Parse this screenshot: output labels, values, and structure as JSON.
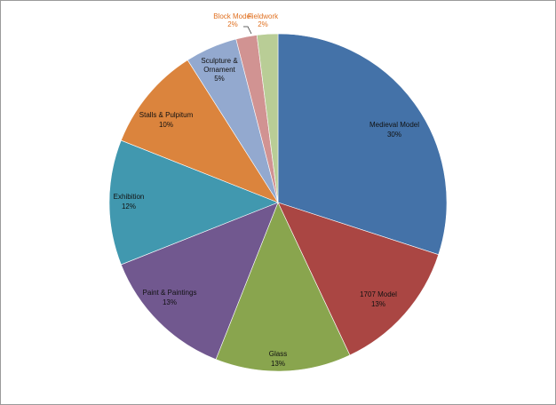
{
  "chart_data": {
    "type": "pie",
    "title": "",
    "slices": [
      {
        "label": "Medieval Model",
        "pct_label": "30%",
        "value": 30,
        "color": "#4472a8"
      },
      {
        "label": "1707 Model",
        "pct_label": "13%",
        "value": 13,
        "color": "#aa4643"
      },
      {
        "label": "Glass",
        "pct_label": "13%",
        "value": 13,
        "color": "#89a54e"
      },
      {
        "label": "Paint & Paintings",
        "pct_label": "13%",
        "value": 13,
        "color": "#71588f"
      },
      {
        "label": "Exhibition",
        "pct_label": "12%",
        "value": 12,
        "color": "#4198af"
      },
      {
        "label": "Stalls & Pulpitum",
        "pct_label": "10%",
        "value": 10,
        "color": "#db843d"
      },
      {
        "label": "Sculpture & Ornament",
        "pct_label": "5%",
        "value": 5,
        "color": "#93a9cf"
      },
      {
        "label": "Block Model",
        "pct_label": "2%",
        "value": 2,
        "color": "#d19392"
      },
      {
        "label": "Fieldwork",
        "pct_label": "2%",
        "value": 2,
        "color": "#b9cd96"
      }
    ],
    "label_color_outside": "#e07020"
  }
}
